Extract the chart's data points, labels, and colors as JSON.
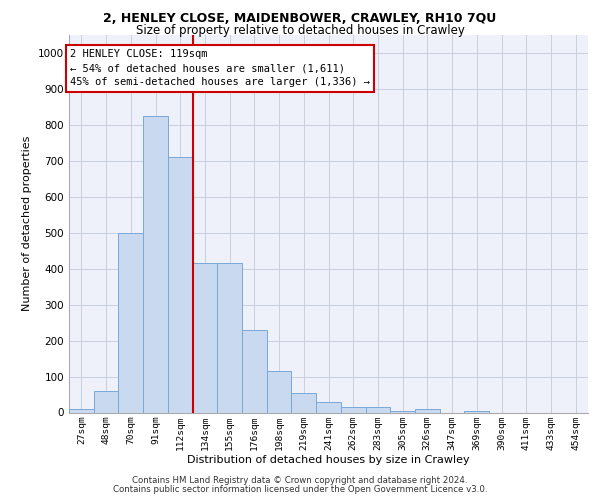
{
  "title1": "2, HENLEY CLOSE, MAIDENBOWER, CRAWLEY, RH10 7QU",
  "title2": "Size of property relative to detached houses in Crawley",
  "xlabel": "Distribution of detached houses by size in Crawley",
  "ylabel": "Number of detached properties",
  "categories": [
    "27sqm",
    "48sqm",
    "70sqm",
    "91sqm",
    "112sqm",
    "134sqm",
    "155sqm",
    "176sqm",
    "198sqm",
    "219sqm",
    "241sqm",
    "262sqm",
    "283sqm",
    "305sqm",
    "326sqm",
    "347sqm",
    "369sqm",
    "390sqm",
    "411sqm",
    "433sqm",
    "454sqm"
  ],
  "values": [
    10,
    60,
    500,
    825,
    710,
    415,
    415,
    230,
    115,
    55,
    30,
    15,
    15,
    5,
    10,
    0,
    5,
    0,
    0,
    0,
    0
  ],
  "bar_color": "#c9d9f0",
  "bar_edge_color": "#7aa8d8",
  "bar_edge_width": 0.7,
  "vline_color": "#cc0000",
  "vline_x": 4.5,
  "annotation_text": "2 HENLEY CLOSE: 119sqm\n← 54% of detached houses are smaller (1,611)\n45% of semi-detached houses are larger (1,336) →",
  "annotation_box_color": "#ffffff",
  "annotation_box_edge": "#cc0000",
  "ylim": [
    0,
    1050
  ],
  "yticks": [
    0,
    100,
    200,
    300,
    400,
    500,
    600,
    700,
    800,
    900,
    1000
  ],
  "grid_color": "#c8d0e0",
  "bg_color": "#eef1fa",
  "footer1": "Contains HM Land Registry data © Crown copyright and database right 2024.",
  "footer2": "Contains public sector information licensed under the Open Government Licence v3.0."
}
